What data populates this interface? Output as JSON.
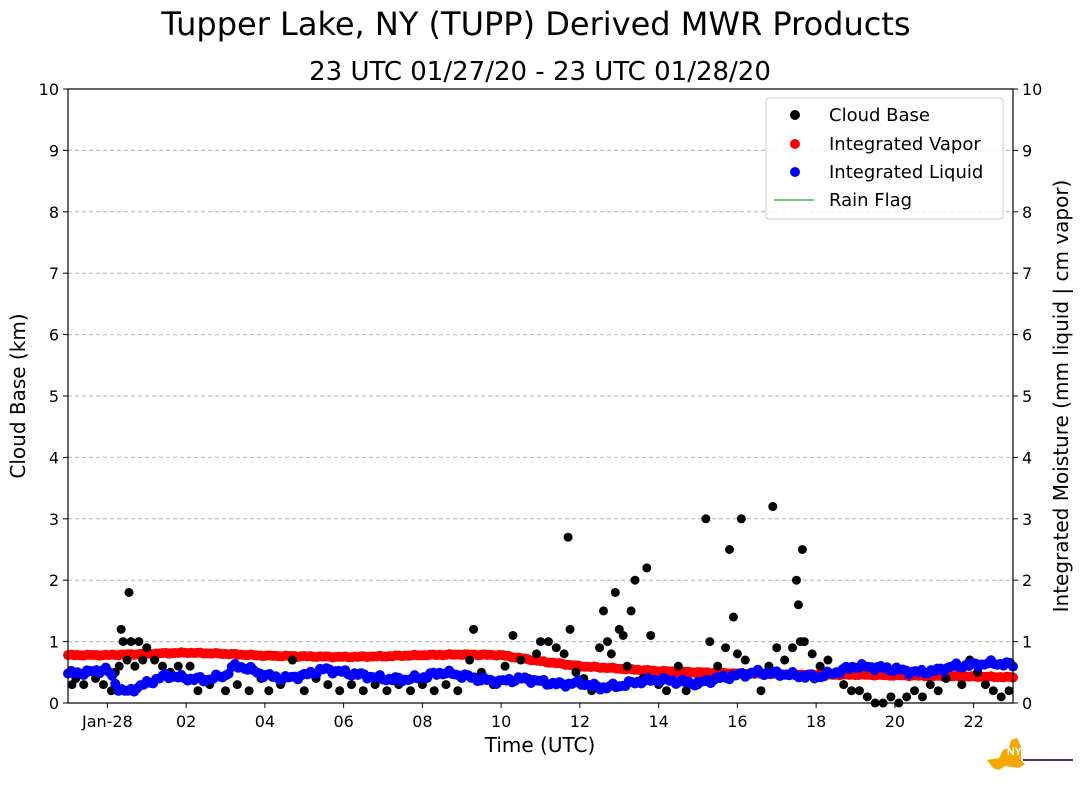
{
  "chart_data": {
    "type": "scatter",
    "title": "Tupper Lake, NY (TUPP) Derived MWR Products",
    "subtitle": "23 UTC 01/27/20 - 23 UTC 01/28/20",
    "xlabel": "Time (UTC)",
    "ylabel": "Cloud Base (km)",
    "y2label": "Integrated Moisture (mm liquid | cm vapor)",
    "xlim": [
      -1,
      23
    ],
    "ylim": [
      0,
      10
    ],
    "y2lim": [
      0,
      10
    ],
    "grid": true,
    "legend_position": "top-right",
    "x_ticks": [
      {
        "value": 0,
        "label": "Jan-28"
      },
      {
        "value": 2,
        "label": "02"
      },
      {
        "value": 4,
        "label": "04"
      },
      {
        "value": 6,
        "label": "06"
      },
      {
        "value": 8,
        "label": "08"
      },
      {
        "value": 10,
        "label": "10"
      },
      {
        "value": 12,
        "label": "12"
      },
      {
        "value": 14,
        "label": "14"
      },
      {
        "value": 16,
        "label": "16"
      },
      {
        "value": 18,
        "label": "18"
      },
      {
        "value": 20,
        "label": "20"
      },
      {
        "value": 22,
        "label": "22"
      }
    ],
    "y_ticks": [
      "0",
      "1",
      "2",
      "3",
      "4",
      "5",
      "6",
      "7",
      "8",
      "9",
      "10"
    ],
    "legend": [
      {
        "label": "Cloud Base",
        "color": "#000000",
        "marker": "dot"
      },
      {
        "label": "Integrated Vapor",
        "color": "#ff0000",
        "marker": "dot"
      },
      {
        "label": "Integrated Liquid",
        "color": "#0000ff",
        "marker": "dot"
      },
      {
        "label": "Rain Flag",
        "color": "#4caf50",
        "marker": "line"
      }
    ],
    "series": [
      {
        "name": "Cloud Base",
        "color": "#000000",
        "points": [
          [
            -0.9,
            0.3
          ],
          [
            -0.8,
            0.4
          ],
          [
            -0.6,
            0.3
          ],
          [
            -0.5,
            0.5
          ],
          [
            -0.3,
            0.4
          ],
          [
            -0.1,
            0.3
          ],
          [
            0.1,
            0.2
          ],
          [
            0.2,
            0.5
          ],
          [
            0.3,
            0.6
          ],
          [
            0.35,
            1.2
          ],
          [
            0.4,
            1.0
          ],
          [
            0.5,
            0.7
          ],
          [
            0.55,
            1.8
          ],
          [
            0.6,
            1.0
          ],
          [
            0.7,
            0.6
          ],
          [
            0.8,
            1.0
          ],
          [
            0.9,
            0.7
          ],
          [
            1.0,
            0.9
          ],
          [
            1.2,
            0.7
          ],
          [
            1.4,
            0.6
          ],
          [
            1.6,
            0.5
          ],
          [
            1.8,
            0.6
          ],
          [
            2.0,
            0.4
          ],
          [
            2.1,
            0.6
          ],
          [
            2.3,
            0.2
          ],
          [
            2.6,
            0.3
          ],
          [
            3.0,
            0.2
          ],
          [
            3.3,
            0.3
          ],
          [
            3.6,
            0.2
          ],
          [
            3.9,
            0.4
          ],
          [
            4.1,
            0.2
          ],
          [
            4.4,
            0.3
          ],
          [
            4.7,
            0.7
          ],
          [
            5.0,
            0.2
          ],
          [
            5.3,
            0.4
          ],
          [
            5.6,
            0.3
          ],
          [
            5.9,
            0.2
          ],
          [
            6.2,
            0.3
          ],
          [
            6.5,
            0.2
          ],
          [
            6.8,
            0.3
          ],
          [
            7.1,
            0.2
          ],
          [
            7.4,
            0.3
          ],
          [
            7.7,
            0.2
          ],
          [
            8.0,
            0.3
          ],
          [
            8.3,
            0.2
          ],
          [
            8.6,
            0.3
          ],
          [
            8.9,
            0.2
          ],
          [
            9.2,
            0.7
          ],
          [
            9.3,
            1.2
          ],
          [
            9.5,
            0.5
          ],
          [
            9.8,
            0.3
          ],
          [
            10.1,
            0.6
          ],
          [
            10.3,
            1.1
          ],
          [
            10.5,
            0.7
          ],
          [
            10.7,
            0.4
          ],
          [
            10.9,
            0.8
          ],
          [
            11.0,
            1.0
          ],
          [
            11.2,
            1.0
          ],
          [
            11.4,
            0.9
          ],
          [
            11.6,
            0.8
          ],
          [
            11.7,
            2.7
          ],
          [
            11.75,
            1.2
          ],
          [
            11.9,
            0.5
          ],
          [
            12.1,
            0.4
          ],
          [
            12.3,
            0.2
          ],
          [
            12.5,
            0.9
          ],
          [
            12.6,
            1.5
          ],
          [
            12.7,
            1.0
          ],
          [
            12.8,
            0.8
          ],
          [
            12.9,
            1.8
          ],
          [
            13.0,
            1.2
          ],
          [
            13.1,
            1.1
          ],
          [
            13.2,
            0.6
          ],
          [
            13.3,
            1.5
          ],
          [
            13.4,
            2.0
          ],
          [
            13.6,
            0.4
          ],
          [
            13.7,
            2.2
          ],
          [
            13.8,
            1.1
          ],
          [
            14.0,
            0.3
          ],
          [
            14.2,
            0.2
          ],
          [
            14.5,
            0.6
          ],
          [
            14.7,
            0.2
          ],
          [
            15.0,
            0.3
          ],
          [
            15.2,
            3.0
          ],
          [
            15.3,
            1.0
          ],
          [
            15.5,
            0.6
          ],
          [
            15.7,
            0.9
          ],
          [
            15.8,
            2.5
          ],
          [
            15.9,
            1.4
          ],
          [
            16.0,
            0.8
          ],
          [
            16.1,
            3.0
          ],
          [
            16.2,
            0.7
          ],
          [
            16.4,
            0.5
          ],
          [
            16.6,
            0.2
          ],
          [
            16.8,
            0.6
          ],
          [
            16.9,
            3.2
          ],
          [
            17.0,
            0.9
          ],
          [
            17.2,
            0.7
          ],
          [
            17.4,
            0.9
          ],
          [
            17.5,
            2.0
          ],
          [
            17.55,
            1.6
          ],
          [
            17.6,
            1.0
          ],
          [
            17.65,
            2.5
          ],
          [
            17.7,
            1.0
          ],
          [
            17.9,
            0.8
          ],
          [
            18.1,
            0.6
          ],
          [
            18.3,
            0.7
          ],
          [
            18.5,
            0.5
          ],
          [
            18.7,
            0.3
          ],
          [
            18.9,
            0.2
          ],
          [
            19.1,
            0.2
          ],
          [
            19.3,
            0.1
          ],
          [
            19.5,
            0.0
          ],
          [
            19.7,
            0.0
          ],
          [
            19.9,
            0.1
          ],
          [
            20.1,
            0.0
          ],
          [
            20.3,
            0.1
          ],
          [
            20.5,
            0.2
          ],
          [
            20.7,
            0.1
          ],
          [
            20.9,
            0.3
          ],
          [
            21.1,
            0.2
          ],
          [
            21.3,
            0.4
          ],
          [
            21.5,
            0.6
          ],
          [
            21.7,
            0.3
          ],
          [
            21.9,
            0.7
          ],
          [
            22.1,
            0.5
          ],
          [
            22.3,
            0.3
          ],
          [
            22.5,
            0.2
          ],
          [
            22.7,
            0.1
          ],
          [
            22.9,
            0.2
          ]
        ]
      },
      {
        "name": "Integrated Vapor",
        "color": "#ff0000",
        "points": [
          [
            -1.0,
            0.78
          ],
          [
            0.0,
            0.78
          ],
          [
            1.0,
            0.8
          ],
          [
            2.0,
            0.82
          ],
          [
            3.0,
            0.8
          ],
          [
            4.0,
            0.77
          ],
          [
            5.0,
            0.76
          ],
          [
            6.0,
            0.75
          ],
          [
            7.0,
            0.76
          ],
          [
            8.0,
            0.78
          ],
          [
            9.0,
            0.79
          ],
          [
            10.0,
            0.78
          ],
          [
            11.0,
            0.68
          ],
          [
            12.0,
            0.6
          ],
          [
            13.0,
            0.56
          ],
          [
            14.0,
            0.52
          ],
          [
            15.0,
            0.5
          ],
          [
            16.0,
            0.48
          ],
          [
            17.0,
            0.47
          ],
          [
            18.0,
            0.46
          ],
          [
            19.0,
            0.46
          ],
          [
            20.0,
            0.45
          ],
          [
            21.0,
            0.44
          ],
          [
            22.0,
            0.43
          ],
          [
            23.0,
            0.42
          ]
        ]
      },
      {
        "name": "Integrated Liquid",
        "color": "#0000ff",
        "points": [
          [
            -1.0,
            0.48
          ],
          [
            -0.5,
            0.5
          ],
          [
            0.0,
            0.55
          ],
          [
            0.3,
            0.22
          ],
          [
            0.5,
            0.18
          ],
          [
            1.0,
            0.32
          ],
          [
            1.5,
            0.45
          ],
          [
            2.0,
            0.4
          ],
          [
            2.5,
            0.38
          ],
          [
            3.0,
            0.45
          ],
          [
            3.2,
            0.6
          ],
          [
            3.5,
            0.58
          ],
          [
            4.0,
            0.45
          ],
          [
            4.5,
            0.4
          ],
          [
            5.0,
            0.45
          ],
          [
            5.5,
            0.55
          ],
          [
            6.0,
            0.5
          ],
          [
            6.5,
            0.45
          ],
          [
            7.0,
            0.4
          ],
          [
            7.5,
            0.38
          ],
          [
            8.0,
            0.42
          ],
          [
            8.5,
            0.5
          ],
          [
            9.0,
            0.45
          ],
          [
            9.5,
            0.38
          ],
          [
            10.0,
            0.35
          ],
          [
            10.5,
            0.4
          ],
          [
            11.0,
            0.35
          ],
          [
            11.5,
            0.3
          ],
          [
            12.0,
            0.33
          ],
          [
            12.5,
            0.25
          ],
          [
            13.0,
            0.28
          ],
          [
            13.5,
            0.35
          ],
          [
            14.0,
            0.38
          ],
          [
            14.5,
            0.35
          ],
          [
            15.0,
            0.32
          ],
          [
            15.5,
            0.4
          ],
          [
            16.0,
            0.45
          ],
          [
            16.5,
            0.5
          ],
          [
            17.0,
            0.48
          ],
          [
            17.5,
            0.45
          ],
          [
            18.0,
            0.42
          ],
          [
            18.5,
            0.5
          ],
          [
            19.0,
            0.6
          ],
          [
            19.5,
            0.58
          ],
          [
            20.0,
            0.55
          ],
          [
            20.5,
            0.5
          ],
          [
            21.0,
            0.52
          ],
          [
            21.5,
            0.6
          ],
          [
            22.0,
            0.62
          ],
          [
            22.5,
            0.65
          ],
          [
            23.0,
            0.62
          ]
        ]
      },
      {
        "name": "Rain Flag",
        "color": "#4caf50",
        "points": []
      }
    ]
  },
  "logo": {
    "brand": "NYS Mesonet",
    "state_color": "#f5a800",
    "text_color": "#4b2c83"
  }
}
